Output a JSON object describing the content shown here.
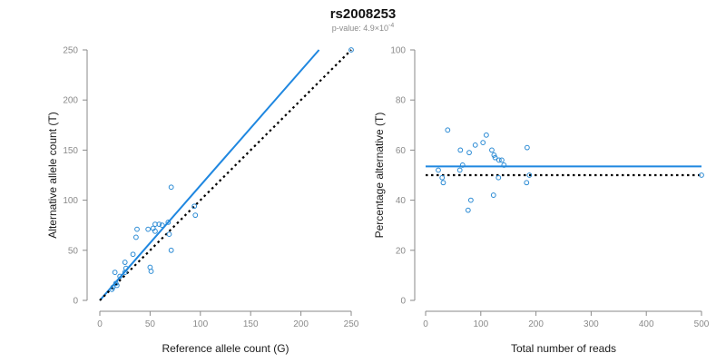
{
  "figure": {
    "title": "rs2008253",
    "subtitle_prefix": "p-value: 4.9×10",
    "subtitle_exponent": "-4"
  },
  "colors": {
    "points": "#2a8ad4",
    "fit_line": "#1f87e0",
    "ref_line": "#000000",
    "axis": "#8a8a8a"
  },
  "chart_data": [
    {
      "type": "scatter",
      "title": "",
      "xlabel": "Reference allele count (G)",
      "ylabel": "Alternative allele count (T)",
      "xlim": [
        0,
        250
      ],
      "ylim": [
        0,
        250
      ],
      "xticks": [
        "0",
        "50",
        "100",
        "150",
        "200",
        "250"
      ],
      "yticks": [
        "0",
        "50",
        "100",
        "150",
        "200",
        "250"
      ],
      "xtick_values": [
        0,
        50,
        100,
        150,
        200,
        250
      ],
      "ytick_values": [
        0,
        50,
        100,
        150,
        200,
        250
      ],
      "points": [
        [
          250,
          250
        ],
        [
          71,
          113
        ],
        [
          94,
          94
        ],
        [
          95,
          85
        ],
        [
          71,
          50
        ],
        [
          68,
          78
        ],
        [
          69,
          66
        ],
        [
          62,
          75
        ],
        [
          59,
          76
        ],
        [
          55,
          76
        ],
        [
          53,
          72
        ],
        [
          55,
          69
        ],
        [
          48,
          71
        ],
        [
          37,
          71
        ],
        [
          36,
          63
        ],
        [
          33,
          46
        ],
        [
          25,
          38
        ],
        [
          26,
          32
        ],
        [
          25,
          28
        ],
        [
          20,
          24
        ],
        [
          15,
          28
        ],
        [
          16,
          17
        ],
        [
          17,
          15
        ],
        [
          13,
          13
        ],
        [
          50,
          33
        ],
        [
          51,
          29
        ],
        [
          12,
          11
        ]
      ],
      "lines": [
        {
          "style": "solid",
          "from": [
            0,
            0
          ],
          "to": [
            218,
            250
          ]
        },
        {
          "style": "dotted",
          "from": [
            0,
            0
          ],
          "to": [
            250,
            250
          ]
        }
      ],
      "grid": false,
      "legend": "none"
    },
    {
      "type": "scatter",
      "title": "",
      "xlabel": "Total number of reads",
      "ylabel": "Percentage alternative (T)",
      "xlim": [
        0,
        500
      ],
      "ylim": [
        0,
        100
      ],
      "xticks": [
        "0",
        "100",
        "200",
        "300",
        "400",
        "500"
      ],
      "yticks": [
        "0",
        "20",
        "40",
        "60",
        "80",
        "100"
      ],
      "xtick_values": [
        0,
        100,
        200,
        300,
        400,
        500
      ],
      "ytick_values": [
        0,
        20,
        40,
        60,
        80,
        100
      ],
      "points": [
        [
          500,
          50
        ],
        [
          184,
          61
        ],
        [
          188,
          50
        ],
        [
          183,
          47
        ],
        [
          142,
          54
        ],
        [
          138,
          56
        ],
        [
          133,
          56
        ],
        [
          132,
          49
        ],
        [
          126,
          57
        ],
        [
          124,
          58
        ],
        [
          120,
          60
        ],
        [
          123,
          42
        ],
        [
          110,
          66
        ],
        [
          104,
          63
        ],
        [
          90,
          62
        ],
        [
          79,
          59
        ],
        [
          82,
          40
        ],
        [
          77,
          36
        ],
        [
          67,
          54
        ],
        [
          63,
          60
        ],
        [
          62,
          52
        ],
        [
          40,
          68
        ],
        [
          30,
          49
        ],
        [
          32,
          47
        ],
        [
          23,
          52
        ]
      ],
      "lines": [
        {
          "style": "solid",
          "from": [
            0,
            53.5
          ],
          "to": [
            500,
            53.5
          ]
        },
        {
          "style": "dotted",
          "from": [
            0,
            50
          ],
          "to": [
            500,
            50
          ]
        }
      ],
      "grid": false,
      "legend": "none"
    }
  ]
}
